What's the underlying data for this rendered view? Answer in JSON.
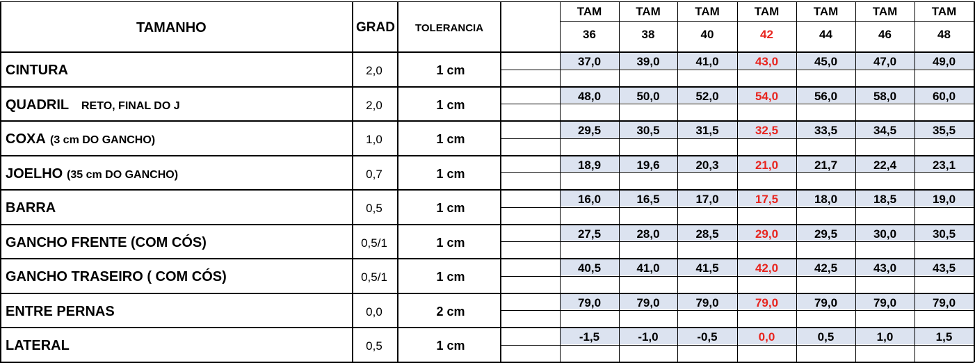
{
  "header": {
    "tamanho": "TAMANHO",
    "grad": "GRAD",
    "tolerancia": "TOLERANCIA",
    "tam_label": "TAM",
    "sizes": [
      "36",
      "38",
      "40",
      "42",
      "44",
      "46",
      "48"
    ]
  },
  "highlight_size": "42",
  "colors": {
    "highlight": "#e8251f",
    "value_fill": "#dce3f0"
  },
  "rows": [
    {
      "name": "CINTURA",
      "note": "",
      "grad": "2,0",
      "tol": "1 cm",
      "values": [
        "37,0",
        "39,0",
        "41,0",
        "43,0",
        "45,0",
        "47,0",
        "49,0"
      ]
    },
    {
      "name": "QUADRIL",
      "note": "RETO, FINAL DO J",
      "grad": "2,0",
      "tol": "1 cm",
      "values": [
        "48,0",
        "50,0",
        "52,0",
        "54,0",
        "56,0",
        "58,0",
        "60,0"
      ]
    },
    {
      "name": "COXA",
      "note": "(3 cm DO GANCHO)",
      "grad": "1,0",
      "tol": "1 cm",
      "values": [
        "29,5",
        "30,5",
        "31,5",
        "32,5",
        "33,5",
        "34,5",
        "35,5"
      ]
    },
    {
      "name": "JOELHO",
      "note": "(35 cm DO GANCHO)",
      "grad": "0,7",
      "tol": "1 cm",
      "values": [
        "18,9",
        "19,6",
        "20,3",
        "21,0",
        "21,7",
        "22,4",
        "23,1"
      ]
    },
    {
      "name": "BARRA",
      "note": "",
      "grad": "0,5",
      "tol": "1 cm",
      "values": [
        "16,0",
        "16,5",
        "17,0",
        "17,5",
        "18,0",
        "18,5",
        "19,0"
      ]
    },
    {
      "name": "GANCHO FRENTE (COM CÓS)",
      "note": "",
      "grad": "0,5/1",
      "tol": "1 cm",
      "values": [
        "27,5",
        "28,0",
        "28,5",
        "29,0",
        "29,5",
        "30,0",
        "30,5"
      ]
    },
    {
      "name": "GANCHO TRASEIRO ( COM CÓS)",
      "note": "",
      "grad": "0,5/1",
      "tol": "1 cm",
      "values": [
        "40,5",
        "41,0",
        "41,5",
        "42,0",
        "42,5",
        "43,0",
        "43,5"
      ]
    },
    {
      "name": "ENTRE PERNAS",
      "note": "",
      "grad": "0,0",
      "tol": "2 cm",
      "values": [
        "79,0",
        "79,0",
        "79,0",
        "79,0",
        "79,0",
        "79,0",
        "79,0"
      ]
    },
    {
      "name": "LATERAL",
      "note": "",
      "grad": "0,5",
      "tol": "1 cm",
      "values": [
        "-1,5",
        "-1,0",
        "-0,5",
        "0,0",
        "0,5",
        "1,0",
        "1,5"
      ]
    }
  ]
}
